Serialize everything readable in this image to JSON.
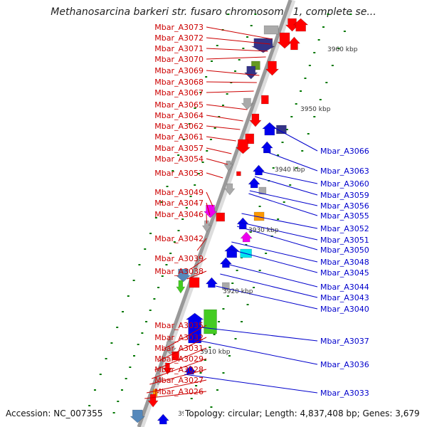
{
  "title": "Methanosarcina barkeri str. fusaro chromosome 1, complete se...",
  "footer": {
    "accession": "Accession: NC_007355",
    "summary": "Topology: circular; Length: 4,837,408 bp; Genes: 3,679"
  },
  "kbp_labels": [
    "3960 kbp",
    "3950 kbp",
    "3940 kbp",
    "3930 kbp",
    "3920 kbp",
    "3910 kbp",
    "39"
  ],
  "colors": {
    "forward_label": "#cc0000",
    "reverse_label": "#0000cc",
    "axis": "#999999",
    "gene_red": "#ff0000",
    "gene_blue": "#0000ee",
    "gene_grey": "#aaaaaa",
    "gene_cyan": "#00e5ee",
    "gene_magenta": "#ee00ee",
    "gene_green": "#44cc22",
    "gene_orange": "#ff9900",
    "gene_navy": "#333388",
    "gene_olive": "#669922",
    "gene_steel": "#5588bb",
    "gc_tick": "#007700"
  },
  "forward_genes": [
    "Mbar_A3073",
    "Mbar_A3072",
    "Mbar_A3071",
    "Mbar_A3070",
    "Mbar_A3069",
    "Mbar_A3068",
    "Mbar_A3067",
    "Mbar_A3065",
    "Mbar_A3064",
    "Mbar_A3062",
    "Mbar_A3061",
    "Mbar_A3057",
    "Mbar_A3054",
    "Mbar_A3053",
    "Mbar_A3049",
    "Mbar_A3047",
    "Mbar_A3046",
    "Mbar_A3042",
    "Mbar_A3039",
    "Mbar_A3038",
    "Mbar_A3035",
    "Mbar_A3032",
    "Mbar_A3031",
    "Mbar_A3029",
    "Mbar_A3028",
    "Mbar_A3027",
    "Mbar_A3026"
  ],
  "reverse_genes": [
    "Mbar_A3066",
    "Mbar_A3063",
    "Mbar_A3060",
    "Mbar_A3059",
    "Mbar_A3056",
    "Mbar_A3055",
    "Mbar_A3052",
    "Mbar_A3051",
    "Mbar_A3050",
    "Mbar_A3048",
    "Mbar_A3045",
    "Mbar_A3044",
    "Mbar_A3043",
    "Mbar_A3040",
    "Mbar_A3037",
    "Mbar_A3036",
    "Mbar_A3033"
  ]
}
